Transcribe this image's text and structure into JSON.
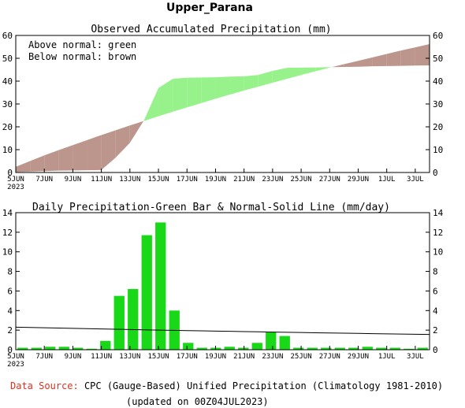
{
  "title": "Upper_Parana",
  "colors": {
    "above": "#98f28c",
    "below": "#bc968c",
    "bar": "#18d818",
    "axis": "#000000",
    "source_label": "#e03020"
  },
  "legend": {
    "above": "Above normal: green",
    "below": "Below normal: brown"
  },
  "footer": {
    "source_label": "Data Source:",
    "source_text": "CPC (Gauge-Based) Unified Precipitation (Climatology 1981-2010)",
    "updated": "(updated on 00Z04JUL2023)"
  },
  "chart_data": [
    {
      "type": "area",
      "title": "Observed Accumulated Precipitation (mm)",
      "ylim": [
        0,
        60
      ],
      "yticks": [
        0,
        10,
        20,
        30,
        40,
        50,
        60
      ],
      "x_tick_labels": [
        "5JUN",
        "7JUN",
        "9JUN",
        "11JUN",
        "13JUN",
        "15JUN",
        "17JUN",
        "19JUN",
        "21JUN",
        "23JUN",
        "25JUN",
        "27JUN",
        "29JUN",
        "1JUL",
        "3JUL"
      ],
      "x_year_label": "2023",
      "x": [
        "5JUN",
        "6JUN",
        "7JUN",
        "8JUN",
        "9JUN",
        "10JUN",
        "11JUN",
        "12JUN",
        "13JUN",
        "14JUN",
        "15JUN",
        "16JUN",
        "17JUN",
        "18JUN",
        "19JUN",
        "20JUN",
        "21JUN",
        "22JUN",
        "23JUN",
        "24JUN",
        "25JUN",
        "26JUN",
        "27JUN",
        "28JUN",
        "29JUN",
        "30JUN",
        "1JUL",
        "2JUL",
        "3JUL",
        "4JUL"
      ],
      "series": [
        {
          "name": "observed",
          "values": [
            0.2,
            0.4,
            0.6,
            0.8,
            0.9,
            1.0,
            1.1,
            6.5,
            13.0,
            23.0,
            37.0,
            41.0,
            41.5,
            41.6,
            41.7,
            42.0,
            42.1,
            42.7,
            44.5,
            45.8,
            45.9,
            46.0,
            46.1,
            46.2,
            46.3,
            46.5,
            46.6,
            46.7,
            46.8,
            46.9
          ]
        },
        {
          "name": "normal",
          "values": [
            2.5,
            5.0,
            7.5,
            9.8,
            12.0,
            14.2,
            16.4,
            18.5,
            20.6,
            22.6,
            24.6,
            26.6,
            28.5,
            30.4,
            32.3,
            34.1,
            35.9,
            37.6,
            39.3,
            41.0,
            42.7,
            44.3,
            45.9,
            47.4,
            48.9,
            50.4,
            51.9,
            53.4,
            54.8,
            56.2
          ]
        }
      ]
    },
    {
      "type": "bar",
      "title": "Daily Precipitation-Green Bar & Normal-Solid Line (mm/day)",
      "ylim": [
        0,
        14
      ],
      "yticks": [
        0,
        2,
        4,
        6,
        8,
        10,
        12,
        14
      ],
      "x_tick_labels": [
        "5JUN",
        "7JUN",
        "9JUN",
        "11JUN",
        "13JUN",
        "15JUN",
        "17JUN",
        "19JUN",
        "21JUN",
        "23JUN",
        "25JUN",
        "27JUN",
        "29JUN",
        "1JUL",
        "3JUL"
      ],
      "x_year_label": "2023",
      "categories": [
        "5JUN",
        "6JUN",
        "7JUN",
        "8JUN",
        "9JUN",
        "10JUN",
        "11JUN",
        "12JUN",
        "13JUN",
        "14JUN",
        "15JUN",
        "16JUN",
        "17JUN",
        "18JUN",
        "19JUN",
        "20JUN",
        "21JUN",
        "22JUN",
        "23JUN",
        "24JUN",
        "25JUN",
        "26JUN",
        "27JUN",
        "28JUN",
        "29JUN",
        "30JUN",
        "1JUL",
        "2JUL",
        "3JUL",
        "4JUL"
      ],
      "series": [
        {
          "name": "daily",
          "values": [
            0.2,
            0.2,
            0.3,
            0.3,
            0.2,
            0.1,
            0.9,
            5.5,
            6.2,
            11.7,
            13.0,
            4.0,
            0.7,
            0.2,
            0.2,
            0.3,
            0.2,
            0.7,
            1.8,
            1.4,
            0.2,
            0.2,
            0.2,
            0.2,
            0.2,
            0.3,
            0.2,
            0.2,
            0.1,
            0.2
          ]
        },
        {
          "name": "normal",
          "values": [
            2.3,
            2.27,
            2.24,
            2.21,
            2.18,
            2.15,
            2.12,
            2.09,
            2.06,
            2.03,
            2.0,
            1.98,
            1.95,
            1.93,
            1.9,
            1.88,
            1.85,
            1.83,
            1.8,
            1.78,
            1.76,
            1.73,
            1.71,
            1.69,
            1.67,
            1.64,
            1.62,
            1.6,
            1.58,
            1.56
          ]
        }
      ]
    }
  ]
}
